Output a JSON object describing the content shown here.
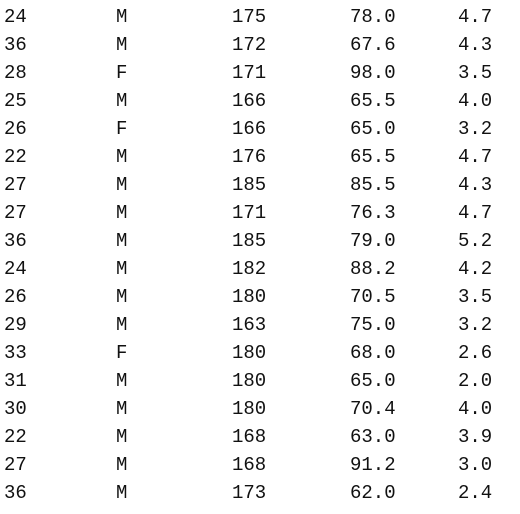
{
  "rows": [
    {
      "age": "24",
      "sex": "M",
      "height": "175",
      "weight": "78.0",
      "score": "4.7"
    },
    {
      "age": "36",
      "sex": "M",
      "height": "172",
      "weight": "67.6",
      "score": "4.3"
    },
    {
      "age": "28",
      "sex": "F",
      "height": "171",
      "weight": "98.0",
      "score": "3.5"
    },
    {
      "age": "25",
      "sex": "M",
      "height": "166",
      "weight": "65.5",
      "score": "4.0"
    },
    {
      "age": "26",
      "sex": "F",
      "height": "166",
      "weight": "65.0",
      "score": "3.2"
    },
    {
      "age": "22",
      "sex": "M",
      "height": "176",
      "weight": "65.5",
      "score": "4.7"
    },
    {
      "age": "27",
      "sex": "M",
      "height": "185",
      "weight": "85.5",
      "score": "4.3"
    },
    {
      "age": "27",
      "sex": "M",
      "height": "171",
      "weight": "76.3",
      "score": "4.7"
    },
    {
      "age": "36",
      "sex": "M",
      "height": "185",
      "weight": "79.0",
      "score": "5.2"
    },
    {
      "age": "24",
      "sex": "M",
      "height": "182",
      "weight": "88.2",
      "score": "4.2"
    },
    {
      "age": "26",
      "sex": "M",
      "height": "180",
      "weight": "70.5",
      "score": "3.5"
    },
    {
      "age": "29",
      "sex": "M",
      "height": "163",
      "weight": "75.0",
      "score": "3.2"
    },
    {
      "age": "33",
      "sex": "F",
      "height": "180",
      "weight": "68.0",
      "score": "2.6"
    },
    {
      "age": "31",
      "sex": "M",
      "height": "180",
      "weight": "65.0",
      "score": "2.0"
    },
    {
      "age": "30",
      "sex": "M",
      "height": "180",
      "weight": "70.4",
      "score": "4.0"
    },
    {
      "age": "22",
      "sex": "M",
      "height": "168",
      "weight": "63.0",
      "score": "3.9"
    },
    {
      "age": "27",
      "sex": "M",
      "height": "168",
      "weight": "91.2",
      "score": "3.0"
    },
    {
      "age": "36",
      "sex": "M",
      "height": "173",
      "weight": "62.0",
      "score": "2.4"
    }
  ]
}
